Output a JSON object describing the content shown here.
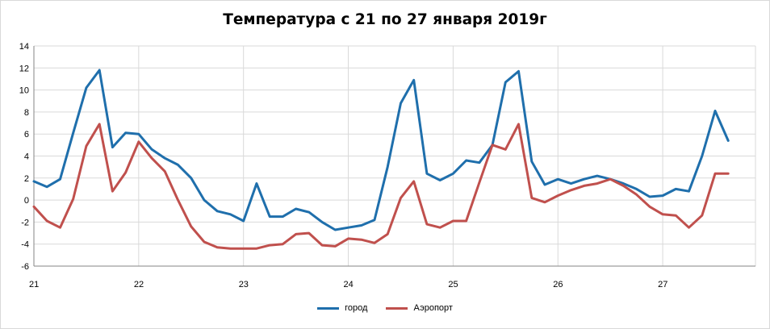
{
  "chart_data": {
    "type": "line",
    "title": "Температура с 21 по 27 января 2019г",
    "xlabel": "",
    "ylabel": "",
    "ylim": [
      -6,
      14
    ],
    "yticks": [
      -6,
      -4,
      -2,
      0,
      2,
      4,
      6,
      8,
      10,
      12,
      14
    ],
    "xlim": [
      21,
      27.885
    ],
    "xticks": [
      21,
      22,
      23,
      24,
      25,
      26,
      27
    ],
    "grid": true,
    "legend_position": "bottom",
    "x": [
      21,
      21.125,
      21.25,
      21.375,
      21.5,
      21.625,
      21.75,
      21.875,
      22,
      22.125,
      22.25,
      22.375,
      22.5,
      22.625,
      22.75,
      22.875,
      23,
      23.125,
      23.25,
      23.375,
      23.5,
      23.625,
      23.75,
      23.875,
      24,
      24.125,
      24.25,
      24.375,
      24.5,
      24.625,
      24.75,
      24.875,
      25,
      25.125,
      25.25,
      25.375,
      25.5,
      25.625,
      25.75,
      25.875,
      26,
      26.125,
      26.25,
      26.375,
      26.5,
      26.625,
      26.75,
      26.875,
      27,
      27.125,
      27.25,
      27.375,
      27.5,
      27.625
    ],
    "series": [
      {
        "name": "город",
        "color": "#1f6fac",
        "values": [
          1.7,
          1.2,
          1.9,
          6.1,
          10.2,
          11.8,
          4.8,
          6.1,
          6.0,
          4.6,
          3.8,
          3.2,
          2.0,
          0.0,
          -1.0,
          -1.3,
          -1.9,
          1.5,
          -1.5,
          -1.5,
          -0.8,
          -1.1,
          -2.0,
          -2.7,
          -2.5,
          -2.3,
          -1.8,
          3.0,
          8.8,
          10.9,
          2.4,
          1.8,
          2.4,
          3.6,
          3.4,
          5.0,
          10.7,
          11.7,
          3.5,
          1.4,
          1.9,
          1.5,
          1.9,
          2.2,
          1.9,
          1.5,
          1.0,
          0.3,
          0.4,
          1.0,
          0.8,
          4.0,
          8.1,
          5.4
        ]
      },
      {
        "name": "Аэропорт",
        "color": "#c0504d",
        "values": [
          -0.6,
          -1.9,
          -2.5,
          0.1,
          4.9,
          6.9,
          0.8,
          2.5,
          5.3,
          3.8,
          2.6,
          0.0,
          -2.4,
          -3.8,
          -4.3,
          -4.4,
          -4.4,
          -4.4,
          -4.1,
          -4.0,
          -3.1,
          -3.0,
          -4.1,
          -4.2,
          -3.5,
          -3.6,
          -3.9,
          -3.1,
          0.2,
          1.7,
          -2.2,
          -2.5,
          -1.9,
          -1.9,
          1.6,
          5.0,
          4.6,
          6.9,
          0.2,
          -0.2,
          0.4,
          0.9,
          1.3,
          1.5,
          1.9,
          1.3,
          0.5,
          -0.6,
          -1.3,
          -1.4,
          -2.5,
          -1.4,
          2.4,
          2.4
        ]
      }
    ]
  }
}
